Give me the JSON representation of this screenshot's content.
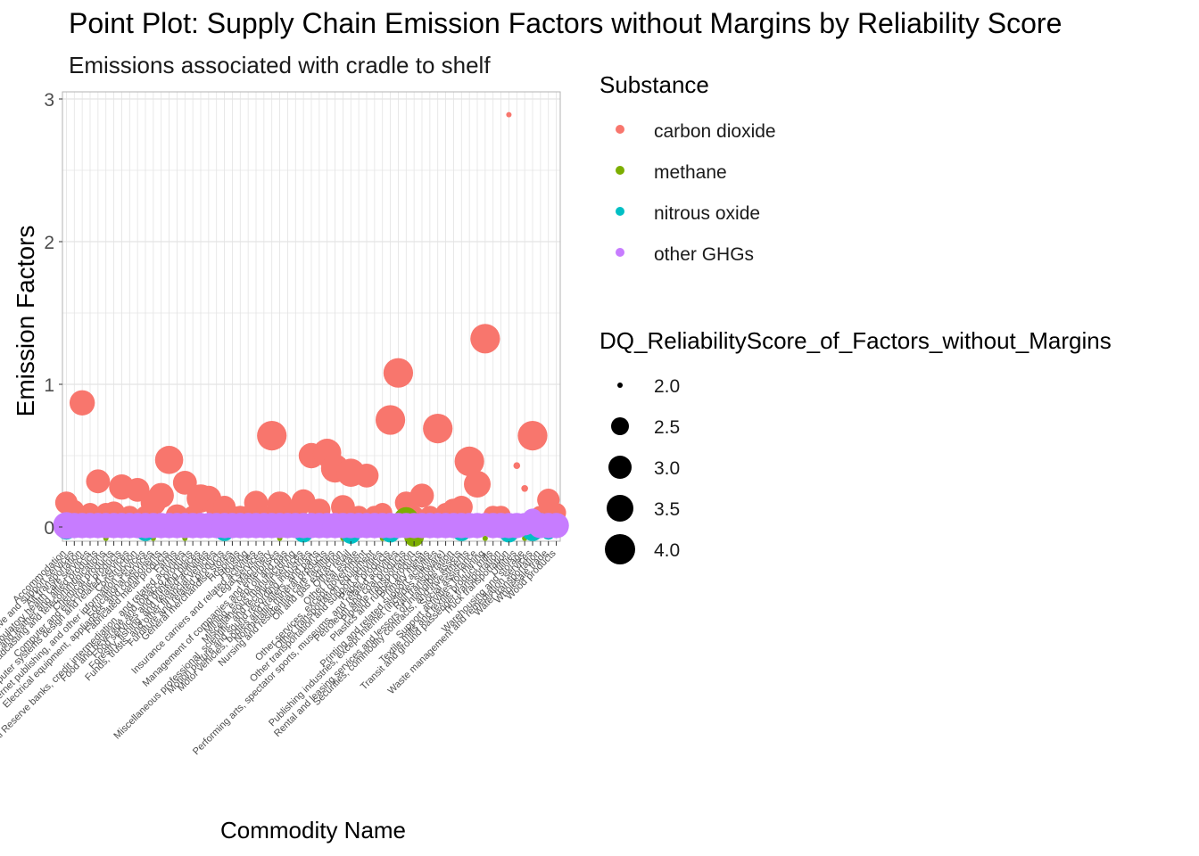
{
  "chart_data": {
    "type": "scatter",
    "title": "Point Plot: Supply Chain Emission Factors without Margins by Reliability Score",
    "subtitle": "Emissions associated with cradle to shelf",
    "xlabel": "Commodity Name",
    "ylabel": "Emission Factors",
    "ylim": [
      -0.1,
      3.05
    ],
    "yticks": [
      0,
      1,
      2,
      3
    ],
    "grid": true,
    "legend_position": "right",
    "categories": [
      "Accommodation",
      "Administrative and support services",
      "Air transportation",
      "Ambulatory health care services",
      "Apparel and leather and allied products",
      "Broadcasting and telecommunications",
      "Chemical products",
      "Computer and electronic products",
      "Computer systems design and related services",
      "Construction",
      "Data processing, internet publishing, and other information services",
      "Educational services",
      "Electrical equipment, appliances, and components",
      "Fabricated metal products",
      "Farms",
      "Federal Reserve banks, credit intermediation, and related activities",
      "Food and beverage and tobacco products",
      "Food services and drinking places",
      "Forestry, fishing, and related activities",
      "Funds, trusts, and other financial vehicles",
      "Furniture and related products",
      "General merchandise stores",
      "Hospitals",
      "Housing",
      "Insurance carriers and related activities",
      "Legal services",
      "Machinery",
      "Management of companies and enterprises",
      "Mining, except oil and gas",
      "Miscellaneous manufacturing",
      "Miscellaneous professional, scientific, and technical services",
      "Motion picture and sound recording industries",
      "Motor vehicles, bodies and trailers, and parts",
      "Nonmetallic mineral products",
      "Nursing and residential care facilities",
      "Oil and gas extraction",
      "Other retail",
      "Other real estate",
      "Other services, except government",
      "Other transportation equipment",
      "Other transportation and support activities",
      "Paper products",
      "Performing arts, spectator sports, museums, and related activities",
      "Petroleum and coal products",
      "Pipeline transportation",
      "Plastics and rubber products",
      "Primary metals",
      "Printing and related support activities",
      "Publishing industries, except internet (includes software)",
      "Rail transportation",
      "Rental and leasing services and lessors of intangible assets",
      "Securities, commodity contracts, and investments",
      "Social assistance",
      "Support activities for mining",
      "Textile mills and textile product mills",
      "Transit and ground passenger transportation",
      "Truck transportation",
      "Utilities",
      "Warehousing and storage",
      "Waste management and remediation services",
      "Water transportation",
      "Wholesale trade",
      "Wood products"
    ],
    "size_legend": {
      "title": "DQ_ReliabilityScore_of_Factors_without_Margins",
      "values": [
        "2.0",
        "2.5",
        "3.0",
        "3.5",
        "4.0"
      ]
    },
    "series": [
      {
        "name": "carbon dioxide",
        "color": "#F8766D",
        "points": [
          {
            "x": 0,
            "y": 0.17,
            "s": 3.2
          },
          {
            "x": 1,
            "y": 0.12,
            "s": 3.0
          },
          {
            "x": 2,
            "y": 0.87,
            "s": 3.4
          },
          {
            "x": 3,
            "y": 0.1,
            "s": 3.0
          },
          {
            "x": 4,
            "y": 0.32,
            "s": 3.3
          },
          {
            "x": 5,
            "y": 0.1,
            "s": 3.0
          },
          {
            "x": 6,
            "y": 0.1,
            "s": 3.2
          },
          {
            "x": 7,
            "y": 0.28,
            "s": 3.4
          },
          {
            "x": 8,
            "y": 0.08,
            "s": 3.0
          },
          {
            "x": 9,
            "y": 0.26,
            "s": 3.3
          },
          {
            "x": 10,
            "y": 0.08,
            "s": 3.0
          },
          {
            "x": 11,
            "y": 0.17,
            "s": 3.4
          },
          {
            "x": 12,
            "y": 0.22,
            "s": 3.4
          },
          {
            "x": 13,
            "y": 0.47,
            "s": 3.6
          },
          {
            "x": 14,
            "y": 0.08,
            "s": 3.2
          },
          {
            "x": 15,
            "y": 0.31,
            "s": 3.3
          },
          {
            "x": 16,
            "y": 0.08,
            "s": 3.0
          },
          {
            "x": 17,
            "y": 0.2,
            "s": 3.6
          },
          {
            "x": 18,
            "y": 0.2,
            "s": 3.4
          },
          {
            "x": 19,
            "y": 0.14,
            "s": 3.2
          },
          {
            "x": 20,
            "y": 0.14,
            "s": 3.2
          },
          {
            "x": 21,
            "y": 0.08,
            "s": 3.0
          },
          {
            "x": 22,
            "y": 0.08,
            "s": 3.0
          },
          {
            "x": 23,
            "y": 0.08,
            "s": 3.0
          },
          {
            "x": 24,
            "y": 0.17,
            "s": 3.3
          },
          {
            "x": 25,
            "y": 0.08,
            "s": 3.0
          },
          {
            "x": 26,
            "y": 0.64,
            "s": 3.7
          },
          {
            "x": 27,
            "y": 0.16,
            "s": 3.4
          },
          {
            "x": 28,
            "y": 0.08,
            "s": 3.0
          },
          {
            "x": 29,
            "y": 0.1,
            "s": 3.2
          },
          {
            "x": 30,
            "y": 0.18,
            "s": 3.3
          },
          {
            "x": 31,
            "y": 0.5,
            "s": 3.4
          },
          {
            "x": 32,
            "y": 0.12,
            "s": 3.2
          },
          {
            "x": 33,
            "y": 0.52,
            "s": 3.6
          },
          {
            "x": 34,
            "y": 0.41,
            "s": 3.6
          },
          {
            "x": 35,
            "y": 0.14,
            "s": 3.3
          },
          {
            "x": 36,
            "y": 0.38,
            "s": 3.6
          },
          {
            "x": 37,
            "y": 0.08,
            "s": 3.0
          },
          {
            "x": 38,
            "y": 0.36,
            "s": 3.3
          },
          {
            "x": 39,
            "y": 0.08,
            "s": 3.0
          },
          {
            "x": 40,
            "y": 0.1,
            "s": 3.0
          },
          {
            "x": 41,
            "y": 0.75,
            "s": 3.7
          },
          {
            "x": 42,
            "y": 1.08,
            "s": 3.7
          },
          {
            "x": 43,
            "y": 0.17,
            "s": 3.2
          },
          {
            "x": 44,
            "y": 0.08,
            "s": 3.0
          },
          {
            "x": 45,
            "y": 0.22,
            "s": 3.3
          },
          {
            "x": 46,
            "y": 0.08,
            "s": 3.0
          },
          {
            "x": 47,
            "y": 0.69,
            "s": 3.7
          },
          {
            "x": 48,
            "y": 0.1,
            "s": 3.0
          },
          {
            "x": 49,
            "y": 0.12,
            "s": 3.2
          },
          {
            "x": 50,
            "y": 0.14,
            "s": 3.2
          },
          {
            "x": 51,
            "y": 0.46,
            "s": 3.7
          },
          {
            "x": 52,
            "y": 0.3,
            "s": 3.5
          },
          {
            "x": 53,
            "y": 1.32,
            "s": 3.7
          },
          {
            "x": 54,
            "y": 0.08,
            "s": 3.0
          },
          {
            "x": 55,
            "y": 0.08,
            "s": 3.0
          },
          {
            "x": 56,
            "y": 2.89,
            "s": 2.0
          },
          {
            "x": 57,
            "y": 0.43,
            "s": 2.1
          },
          {
            "x": 58,
            "y": 0.27,
            "s": 2.1
          },
          {
            "x": 59,
            "y": 0.64,
            "s": 3.7
          },
          {
            "x": 60,
            "y": 0.08,
            "s": 3.0
          },
          {
            "x": 61,
            "y": 0.19,
            "s": 3.2
          },
          {
            "x": 62,
            "y": 0.1,
            "s": 3.0
          }
        ]
      },
      {
        "name": "methane",
        "color": "#7CAE00",
        "points": [
          {
            "x": 5,
            "y": -0.08,
            "s": 2.0
          },
          {
            "x": 11,
            "y": -0.08,
            "s": 2.0
          },
          {
            "x": 15,
            "y": -0.08,
            "s": 2.0
          },
          {
            "x": 27,
            "y": -0.08,
            "s": 2.0
          },
          {
            "x": 35,
            "y": -0.08,
            "s": 2.0
          },
          {
            "x": 40,
            "y": -0.08,
            "s": 2.0
          },
          {
            "x": 43,
            "y": 0.05,
            "s": 3.4
          },
          {
            "x": 44,
            "y": -0.07,
            "s": 3.0
          },
          {
            "x": 53,
            "y": -0.08,
            "s": 2.0
          },
          {
            "x": 58,
            "y": -0.08,
            "s": 2.0
          },
          {
            "x": 62,
            "y": -0.02,
            "s": 2.2
          }
        ]
      },
      {
        "name": "nitrous oxide",
        "color": "#00BFC4",
        "points": [
          {
            "x": 0,
            "y": -0.02,
            "s": 3.0
          },
          {
            "x": 10,
            "y": -0.03,
            "s": 3.0
          },
          {
            "x": 20,
            "y": -0.03,
            "s": 3.0
          },
          {
            "x": 30,
            "y": -0.04,
            "s": 3.0
          },
          {
            "x": 36,
            "y": -0.05,
            "s": 3.0
          },
          {
            "x": 41,
            "y": -0.04,
            "s": 3.0
          },
          {
            "x": 50,
            "y": -0.03,
            "s": 3.0
          },
          {
            "x": 56,
            "y": -0.04,
            "s": 3.0
          },
          {
            "x": 59,
            "y": -0.02,
            "s": 3.2
          },
          {
            "x": 60,
            "y": 0.02,
            "s": 3.2
          },
          {
            "x": 61,
            "y": -0.04,
            "s": 2.6
          }
        ]
      },
      {
        "name": "other GHGs",
        "color": "#C77CFF",
        "points": [
          {
            "x": 0,
            "y": 0.01,
            "s": 3.5
          },
          {
            "x": 1,
            "y": 0.01,
            "s": 3.4
          },
          {
            "x": 2,
            "y": 0.01,
            "s": 3.4
          },
          {
            "x": 3,
            "y": 0.01,
            "s": 3.4
          },
          {
            "x": 4,
            "y": 0.01,
            "s": 3.4
          },
          {
            "x": 5,
            "y": 0.01,
            "s": 3.4
          },
          {
            "x": 6,
            "y": 0.01,
            "s": 3.4
          },
          {
            "x": 7,
            "y": 0.01,
            "s": 3.4
          },
          {
            "x": 8,
            "y": 0.01,
            "s": 3.4
          },
          {
            "x": 9,
            "y": 0.01,
            "s": 3.4
          },
          {
            "x": 10,
            "y": 0.01,
            "s": 3.4
          },
          {
            "x": 11,
            "y": 0.01,
            "s": 3.4
          },
          {
            "x": 12,
            "y": 0.01,
            "s": 3.4
          },
          {
            "x": 13,
            "y": 0.01,
            "s": 3.4
          },
          {
            "x": 14,
            "y": 0.01,
            "s": 3.4
          },
          {
            "x": 15,
            "y": 0.01,
            "s": 3.4
          },
          {
            "x": 16,
            "y": 0.01,
            "s": 3.4
          },
          {
            "x": 17,
            "y": 0.01,
            "s": 3.4
          },
          {
            "x": 18,
            "y": 0.01,
            "s": 3.4
          },
          {
            "x": 19,
            "y": 0.01,
            "s": 3.4
          },
          {
            "x": 20,
            "y": 0.01,
            "s": 3.4
          },
          {
            "x": 21,
            "y": 0.01,
            "s": 3.4
          },
          {
            "x": 22,
            "y": 0.01,
            "s": 3.4
          },
          {
            "x": 23,
            "y": 0.01,
            "s": 3.4
          },
          {
            "x": 24,
            "y": 0.01,
            "s": 3.4
          },
          {
            "x": 25,
            "y": 0.01,
            "s": 3.4
          },
          {
            "x": 26,
            "y": 0.01,
            "s": 3.4
          },
          {
            "x": 27,
            "y": 0.01,
            "s": 3.4
          },
          {
            "x": 28,
            "y": 0.01,
            "s": 3.4
          },
          {
            "x": 29,
            "y": 0.01,
            "s": 3.4
          },
          {
            "x": 30,
            "y": 0.01,
            "s": 3.4
          },
          {
            "x": 31,
            "y": 0.01,
            "s": 3.4
          },
          {
            "x": 32,
            "y": 0.01,
            "s": 3.4
          },
          {
            "x": 33,
            "y": 0.01,
            "s": 3.4
          },
          {
            "x": 34,
            "y": 0.01,
            "s": 3.4
          },
          {
            "x": 35,
            "y": 0.01,
            "s": 3.4
          },
          {
            "x": 36,
            "y": 0.01,
            "s": 3.4
          },
          {
            "x": 37,
            "y": 0.01,
            "s": 3.4
          },
          {
            "x": 38,
            "y": 0.01,
            "s": 3.4
          },
          {
            "x": 39,
            "y": 0.01,
            "s": 3.4
          },
          {
            "x": 40,
            "y": 0.01,
            "s": 3.4
          },
          {
            "x": 41,
            "y": 0.01,
            "s": 3.4
          },
          {
            "x": 42,
            "y": 0.01,
            "s": 3.4
          },
          {
            "x": 43,
            "y": 0.01,
            "s": 3.4
          },
          {
            "x": 44,
            "y": 0.01,
            "s": 3.4
          },
          {
            "x": 45,
            "y": 0.01,
            "s": 3.4
          },
          {
            "x": 46,
            "y": 0.01,
            "s": 3.4
          },
          {
            "x": 47,
            "y": 0.01,
            "s": 3.4
          },
          {
            "x": 48,
            "y": 0.01,
            "s": 3.4
          },
          {
            "x": 49,
            "y": 0.01,
            "s": 3.4
          },
          {
            "x": 50,
            "y": 0.01,
            "s": 3.4
          },
          {
            "x": 51,
            "y": 0.01,
            "s": 3.4
          },
          {
            "x": 52,
            "y": 0.01,
            "s": 3.4
          },
          {
            "x": 53,
            "y": 0.02,
            "s": 3.2
          },
          {
            "x": 54,
            "y": 0.01,
            "s": 3.4
          },
          {
            "x": 55,
            "y": 0.01,
            "s": 3.4
          },
          {
            "x": 56,
            "y": 0.01,
            "s": 3.4
          },
          {
            "x": 57,
            "y": 0.01,
            "s": 3.4
          },
          {
            "x": 58,
            "y": 0.02,
            "s": 3.2
          },
          {
            "x": 59,
            "y": 0.06,
            "s": 3.0
          },
          {
            "x": 60,
            "y": 0.01,
            "s": 3.4
          },
          {
            "x": 61,
            "y": 0.01,
            "s": 3.4
          },
          {
            "x": 62,
            "y": 0.01,
            "s": 3.4
          }
        ]
      }
    ]
  }
}
